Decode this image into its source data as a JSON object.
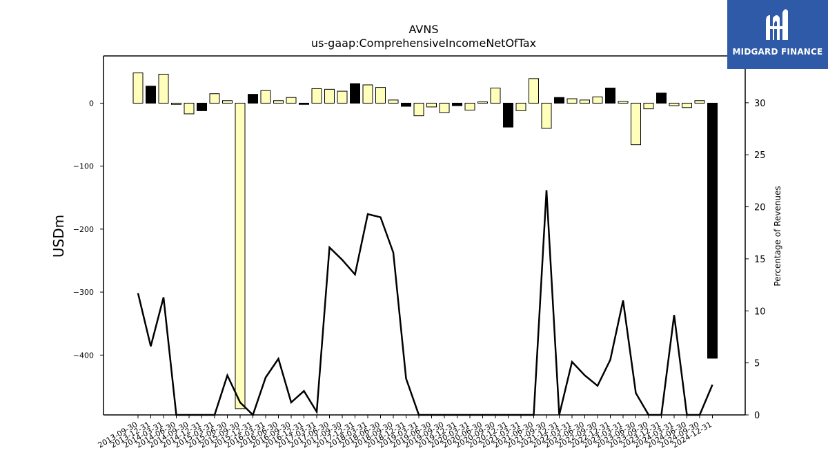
{
  "title": "AVNS",
  "subtitle": "us-gaap:ComprehensiveIncomeNetOfTax",
  "logo": {
    "text": "MIDGARD FINANCE",
    "color": "#2f5aa8"
  },
  "chart_data": {
    "type": "bar",
    "categories": [
      "2013-09-30",
      "2013-12-31",
      "2014-03-31",
      "2014-06-30",
      "2014-09-30",
      "2014-12-31",
      "2015-03-31",
      "2015-06-30",
      "2015-09-30",
      "2015-12-31",
      "2016-03-31",
      "2016-06-30",
      "2016-09-30",
      "2016-12-31",
      "2017-03-31",
      "2017-06-30",
      "2017-09-30",
      "2017-12-31",
      "2018-03-31",
      "2018-06-30",
      "2018-09-30",
      "2018-12-31",
      "2019-03-31",
      "2019-06-30",
      "2019-09-30",
      "2019-12-31",
      "2020-03-31",
      "2020-06-30",
      "2020-09-30",
      "2020-12-31",
      "2021-03-31",
      "2021-06-30",
      "2021-09-30",
      "2021-12-31",
      "2022-03-31",
      "2022-06-30",
      "2022-09-30",
      "2022-12-31",
      "2023-03-31",
      "2023-06-30",
      "2023-09-30",
      "2023-12-31",
      "2024-03-31",
      "2024-06-30",
      "2024-09-30",
      "2024-12-31"
    ],
    "values": [
      48,
      27,
      46,
      -2,
      -17,
      -12,
      15,
      4,
      -485,
      14,
      20,
      4,
      9,
      -2,
      23,
      22,
      19,
      31,
      29,
      25,
      5,
      -5,
      -20,
      -6,
      -15,
      -4,
      -11,
      2,
      24,
      -38,
      -12,
      39,
      -40,
      9,
      7,
      5,
      10,
      24,
      3,
      -66,
      -9,
      16,
      -4,
      -7,
      4,
      -405
    ],
    "bar_colors": [
      "yellow",
      "black",
      "yellow",
      "yellow",
      "yellow",
      "black",
      "yellow",
      "yellow",
      "yellow",
      "black",
      "yellow",
      "yellow",
      "yellow",
      "black",
      "yellow",
      "yellow",
      "yellow",
      "black",
      "yellow",
      "yellow",
      "yellow",
      "black",
      "yellow",
      "yellow",
      "yellow",
      "black",
      "yellow",
      "yellow",
      "yellow",
      "black",
      "yellow",
      "yellow",
      "yellow",
      "black",
      "yellow",
      "yellow",
      "yellow",
      "black",
      "yellow",
      "yellow",
      "yellow",
      "black",
      "yellow",
      "yellow",
      "yellow",
      "black"
    ],
    "line_values": [
      11.7,
      6.6,
      11.3,
      0,
      0,
      0,
      0,
      3.8,
      1.2,
      0,
      3.6,
      5.4,
      1.2,
      2.3,
      0.3,
      16.1,
      14.9,
      13.5,
      19.3,
      19.0,
      15.6,
      3.5,
      0,
      0,
      0,
      0,
      0,
      0,
      0,
      0,
      0,
      0,
      21.6,
      0,
      5.1,
      3.8,
      2.8,
      5.3,
      11.0,
      2.1,
      0,
      0,
      9.6,
      0,
      0,
      2.9
    ],
    "colors": {
      "positive_bar": "#ffffbb",
      "negative_bar": "#000000",
      "line": "#000000"
    },
    "ylabel": "USDm",
    "ylabel_right": "Percentage of Revenues",
    "ylim": [
      -495,
      75
    ],
    "ylim_right": [
      0,
      34.5
    ],
    "yticks": [
      0,
      -100,
      -200,
      -300,
      -400
    ],
    "yticks_labels": [
      "0",
      "−100",
      "−200",
      "−300",
      "−400"
    ],
    "yticks_right": [
      0,
      5,
      10,
      15,
      20,
      25,
      30
    ],
    "grid": false
  }
}
